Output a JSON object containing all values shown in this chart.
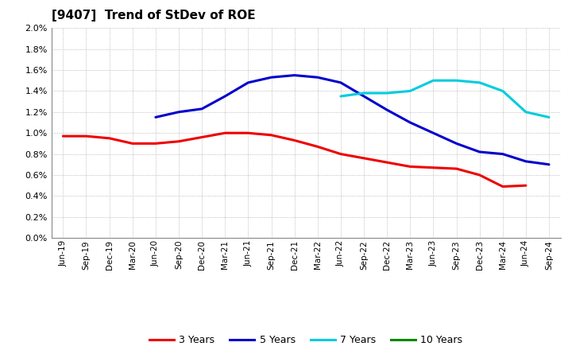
{
  "title": "[9407]  Trend of StDev of ROE",
  "x_labels": [
    "Jun-19",
    "Sep-19",
    "Dec-19",
    "Mar-20",
    "Jun-20",
    "Sep-20",
    "Dec-20",
    "Mar-21",
    "Jun-21",
    "Sep-21",
    "Dec-21",
    "Mar-22",
    "Jun-22",
    "Sep-22",
    "Dec-22",
    "Mar-23",
    "Jun-23",
    "Sep-23",
    "Dec-23",
    "Mar-24",
    "Jun-24",
    "Sep-24"
  ],
  "series": {
    "3 Years": {
      "color": "#EE0000",
      "data_y": [
        0.0097,
        0.0097,
        0.0095,
        0.009,
        0.009,
        0.0092,
        0.0096,
        0.01,
        0.01,
        0.0098,
        0.0093,
        0.0087,
        0.008,
        0.0076,
        0.0072,
        0.0068,
        0.0067,
        0.0066,
        0.006,
        0.0049,
        0.005,
        null
      ]
    },
    "5 Years": {
      "color": "#0000CC",
      "data_y": [
        null,
        null,
        null,
        null,
        0.0115,
        0.012,
        0.0123,
        0.0135,
        0.0148,
        0.0153,
        0.0155,
        0.0153,
        0.0148,
        0.0135,
        0.0122,
        0.011,
        0.01,
        0.009,
        0.0082,
        0.008,
        0.0073,
        0.007
      ]
    },
    "7 Years": {
      "color": "#00CCDD",
      "data_y": [
        null,
        null,
        null,
        null,
        null,
        null,
        null,
        null,
        null,
        null,
        null,
        null,
        0.0135,
        0.0138,
        0.0138,
        0.014,
        0.015,
        0.015,
        0.0148,
        0.014,
        0.012,
        0.0115
      ]
    },
    "10 Years": {
      "color": "#008800",
      "data_y": [
        null,
        null,
        null,
        null,
        null,
        null,
        null,
        null,
        null,
        null,
        null,
        null,
        null,
        null,
        null,
        null,
        null,
        null,
        null,
        null,
        null,
        null
      ]
    }
  },
  "ylim": [
    0.0,
    0.02
  ],
  "yticks": [
    0.0,
    0.002,
    0.004,
    0.006,
    0.008,
    0.01,
    0.012,
    0.014,
    0.016,
    0.018,
    0.02
  ],
  "bg_color": "#FFFFFF",
  "grid_color": "#AAAAAA",
  "legend_labels": [
    "3 Years",
    "5 Years",
    "7 Years",
    "10 Years"
  ],
  "legend_colors": [
    "#EE0000",
    "#0000CC",
    "#00CCDD",
    "#008800"
  ],
  "linewidth": 2.2
}
